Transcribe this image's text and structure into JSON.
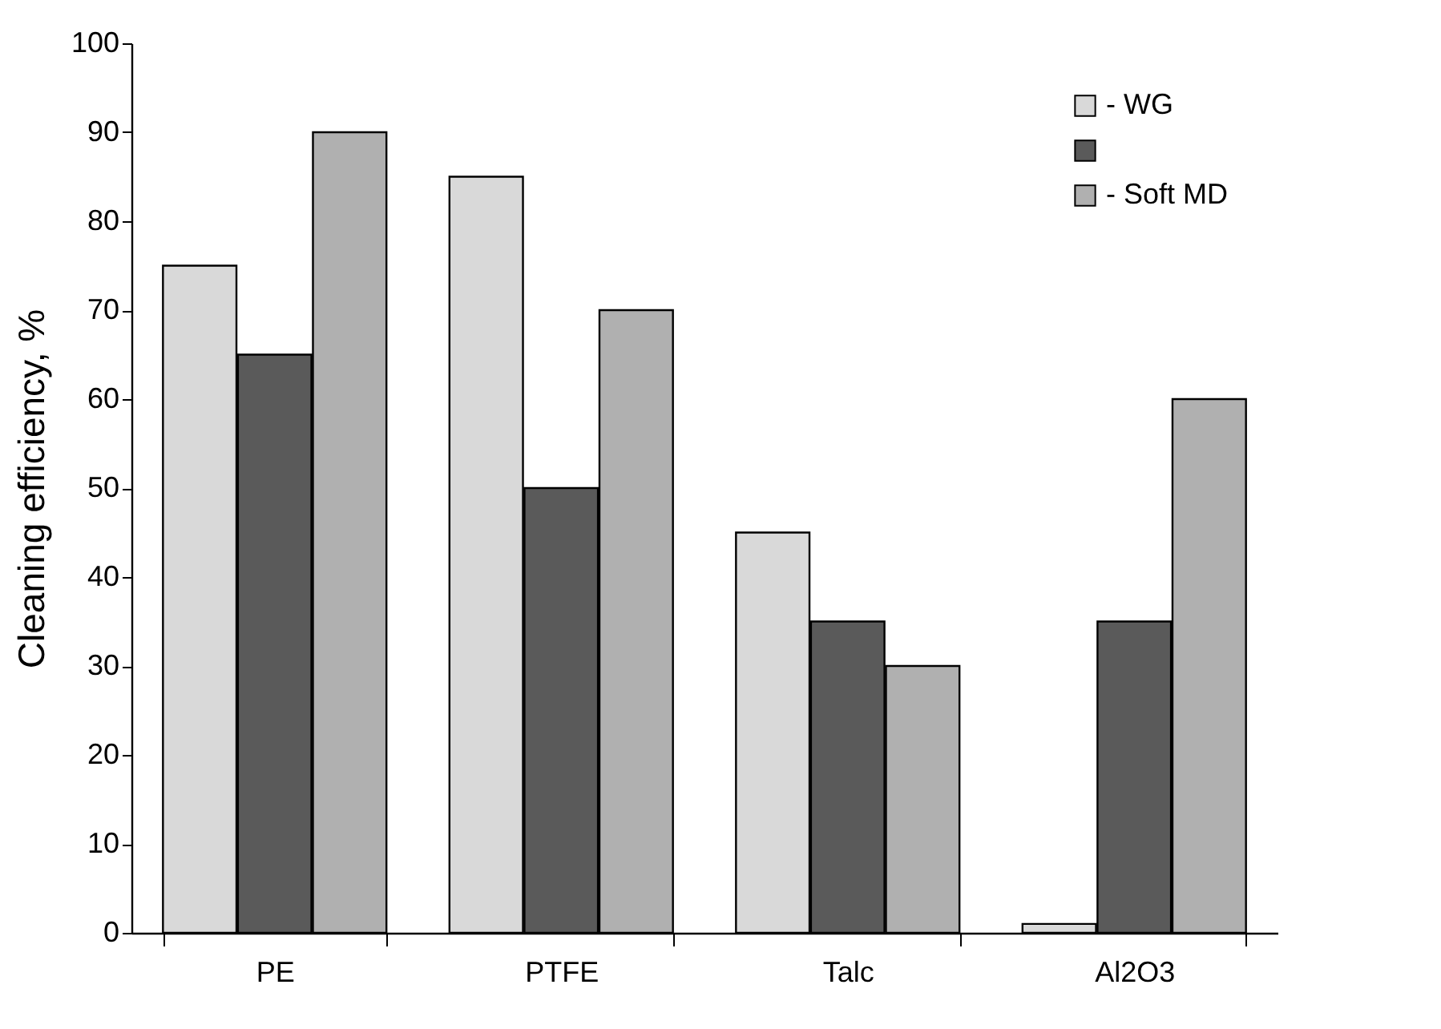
{
  "chart_data": {
    "type": "bar",
    "ylabel": "Cleaning efficiency, %",
    "categories": [
      "PE",
      "PTFE",
      "Talc",
      "Al2O3"
    ],
    "series": [
      {
        "name": "- WG",
        "color": "#d9d9d9",
        "values": [
          75,
          85,
          45,
          1
        ]
      },
      {
        "color": "#5a5a5a",
        "values": [
          65,
          50,
          35,
          35
        ]
      },
      {
        "name": "- Soft MD",
        "color": "#b0b0b0",
        "values": [
          90,
          70,
          30,
          60
        ]
      }
    ],
    "ylim": [
      0,
      100
    ],
    "yticks": [
      0,
      10,
      20,
      30,
      40,
      50,
      60,
      70,
      80,
      90,
      100
    ],
    "grid": false,
    "legend": "top right"
  }
}
